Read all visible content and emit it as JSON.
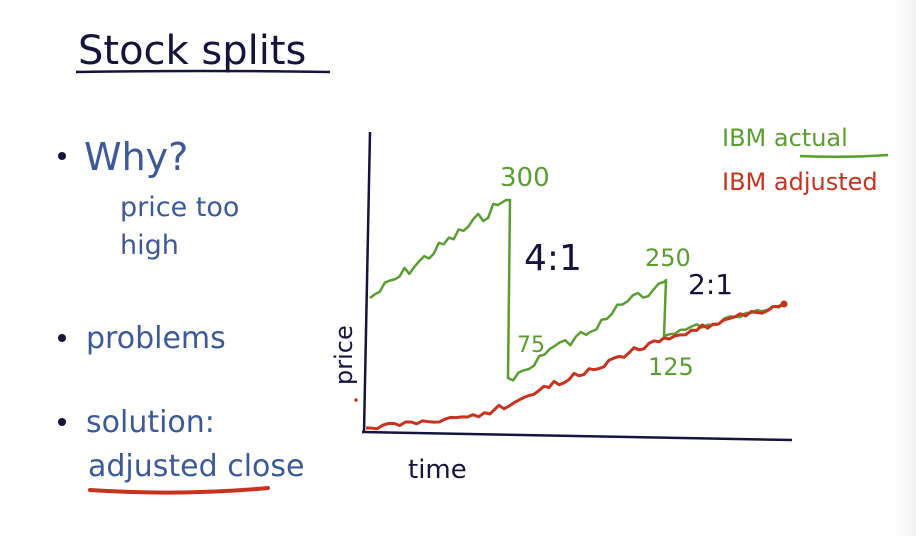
{
  "title": "Stock splits",
  "bullets": [
    {
      "label": "Why?",
      "sub": [
        "price too",
        "high"
      ]
    },
    {
      "label": "problems"
    },
    {
      "label": "solution:",
      "sub": [
        "adjusted close"
      ]
    }
  ],
  "chart": {
    "y_label": "price",
    "x_label": "time",
    "legend": [
      {
        "label": "IBM actual",
        "color": "#5a9e32"
      },
      {
        "label": "IBM adjusted",
        "color": "#c8321e"
      }
    ],
    "annotations": {
      "split1_high": "300",
      "split1_ratio": "4:1",
      "split1_low": "75",
      "split2_high": "250",
      "split2_ratio": "2:1",
      "split2_low": "125"
    }
  },
  "colors": {
    "ink": "#14143c",
    "bullet_text": "#3c5a9a",
    "green": "#5a9e32",
    "red": "#c8321e"
  }
}
